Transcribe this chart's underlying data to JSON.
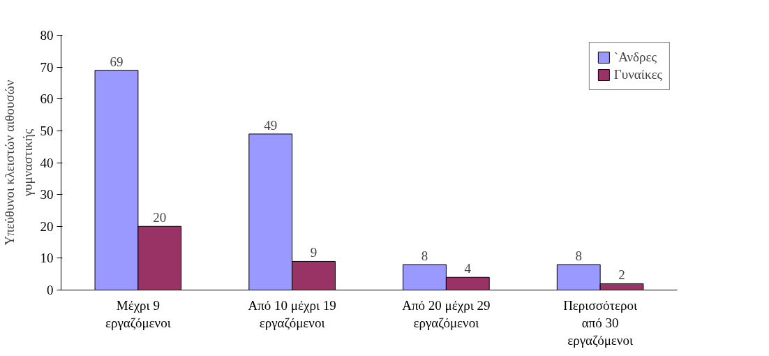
{
  "chart_data": {
    "type": "bar",
    "ylabel": "Υπεύθυνοι κλειστών αιθουσών\nγυμναστικής",
    "categories": [
      "Μέχρι 9\nεργαζόμενοι",
      "Από 10 μέχρι 19\nεργαζόμενοι",
      "Από 20 μέχρι 29\nεργαζόμενοι",
      "Περισσότεροι\nαπό 30\nεργαζόμενοι"
    ],
    "series": [
      {
        "name": "`Ανδρες",
        "color": "#9999ff",
        "values": [
          69,
          49,
          8,
          8
        ]
      },
      {
        "name": "Γυναίκες",
        "color": "#993366",
        "values": [
          20,
          9,
          4,
          2
        ]
      }
    ],
    "ylim": [
      0,
      80
    ],
    "yticks": [
      0,
      10,
      20,
      30,
      40,
      50,
      60,
      70,
      80
    ],
    "grid": false,
    "legend": "top right",
    "data_labels": true
  }
}
